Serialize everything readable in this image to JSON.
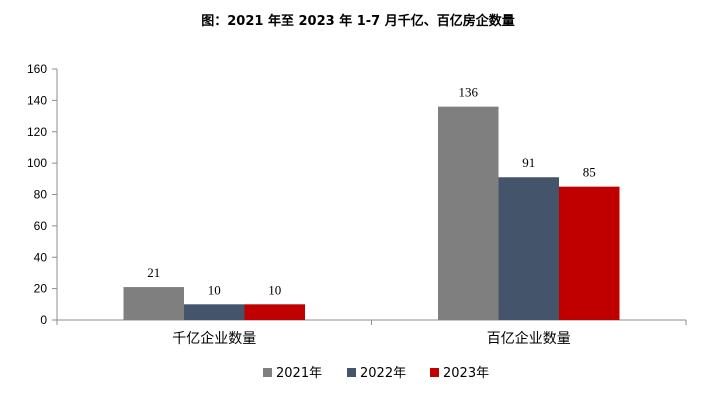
{
  "chart_data": {
    "type": "bar",
    "title": "图：2021 年至 2023 年 1-7 月千亿、百亿房企数量",
    "categories": [
      "千亿企业数量",
      "百亿企业数量"
    ],
    "series": [
      {
        "name": "2021年",
        "values": [
          21,
          136
        ],
        "color": "#7f7f7f"
      },
      {
        "name": "2022年",
        "values": [
          10,
          91
        ],
        "color": "#44546a"
      },
      {
        "name": "2023年",
        "values": [
          10,
          85
        ],
        "color": "#c00000"
      }
    ],
    "ylim": [
      0,
      160
    ],
    "yticks": [
      0,
      20,
      40,
      60,
      80,
      100,
      120,
      140,
      160
    ],
    "xlabel": "",
    "ylabel": "",
    "grid": false,
    "legend": "bottom"
  }
}
